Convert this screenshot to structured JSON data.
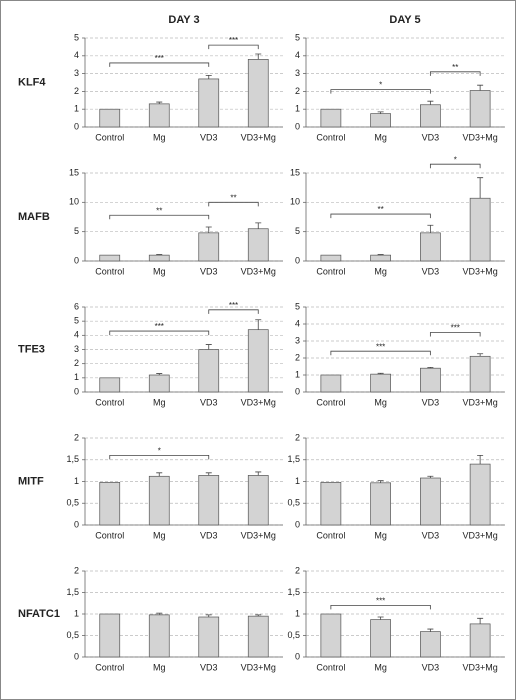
{
  "columns": [
    "DAY 3",
    "DAY 5"
  ],
  "rows": [
    "KLF4",
    "MAFB",
    "TFE3",
    "MITF",
    "NFATC1"
  ],
  "chart_data": [
    {
      "type": "bar",
      "categories": [
        "Control",
        "Mg",
        "VD3",
        "VD3+Mg"
      ],
      "values": [
        1,
        1.3,
        2.7,
        3.8
      ],
      "errors": [
        0,
        0.1,
        0.2,
        0.3
      ],
      "ylim": [
        0,
        5
      ],
      "yticks": [
        0,
        1,
        2,
        3,
        4,
        5
      ],
      "grid": true,
      "color": "#d3d3d3",
      "brackets": [
        {
          "between": [
            0,
            2
          ],
          "y": 3.6,
          "label": "***"
        },
        {
          "between": [
            2,
            3
          ],
          "y": 4.6,
          "label": "***"
        }
      ]
    },
    {
      "type": "bar",
      "categories": [
        "Control",
        "Mg",
        "VD3",
        "VD3+Mg"
      ],
      "values": [
        1,
        0.75,
        1.25,
        2.05
      ],
      "errors": [
        0,
        0.1,
        0.2,
        0.3
      ],
      "ylim": [
        0,
        5
      ],
      "yticks": [
        0,
        1,
        2,
        3,
        4,
        5
      ],
      "grid": true,
      "color": "#d3d3d3",
      "brackets": [
        {
          "between": [
            0,
            2
          ],
          "y": 2.1,
          "label": "*"
        },
        {
          "between": [
            2,
            3
          ],
          "y": 3.1,
          "label": "**"
        }
      ]
    },
    {
      "type": "bar",
      "categories": [
        "Control",
        "Mg",
        "VD3",
        "VD3+Mg"
      ],
      "values": [
        1,
        1,
        4.8,
        5.5
      ],
      "errors": [
        0,
        0.1,
        1,
        1
      ],
      "ylim": [
        0,
        15
      ],
      "yticks": [
        0,
        5,
        10,
        15
      ],
      "grid": true,
      "color": "#d3d3d3",
      "brackets": [
        {
          "between": [
            0,
            2
          ],
          "y": 7.8,
          "label": "**"
        },
        {
          "between": [
            2,
            3
          ],
          "y": 10,
          "label": "**"
        }
      ]
    },
    {
      "type": "bar",
      "categories": [
        "Control",
        "Mg",
        "VD3",
        "VD3+Mg"
      ],
      "values": [
        1,
        1,
        4.8,
        10.7
      ],
      "errors": [
        0,
        0.1,
        1.3,
        3.5
      ],
      "ylim": [
        0,
        15
      ],
      "yticks": [
        0,
        5,
        10,
        15
      ],
      "grid": true,
      "color": "#d3d3d3",
      "brackets": [
        {
          "between": [
            0,
            2
          ],
          "y": 8,
          "label": "**"
        },
        {
          "between": [
            2,
            3
          ],
          "y": 16.5,
          "label": "*"
        }
      ]
    },
    {
      "type": "bar",
      "categories": [
        "Control",
        "Mg",
        "VD3",
        "VD3+Mg"
      ],
      "values": [
        1,
        1.2,
        3,
        4.4
      ],
      "errors": [
        0,
        0.1,
        0.35,
        0.7
      ],
      "ylim": [
        0,
        6
      ],
      "yticks": [
        0,
        1,
        2,
        3,
        4,
        5,
        6
      ],
      "grid": true,
      "color": "#d3d3d3",
      "brackets": [
        {
          "between": [
            0,
            2
          ],
          "y": 4.3,
          "label": "***"
        },
        {
          "between": [
            2,
            3
          ],
          "y": 5.8,
          "label": "***"
        }
      ]
    },
    {
      "type": "bar",
      "categories": [
        "Control",
        "Mg",
        "VD3",
        "VD3+Mg"
      ],
      "values": [
        1,
        1.05,
        1.4,
        2.1
      ],
      "errors": [
        0,
        0.05,
        0.05,
        0.15
      ],
      "ylim": [
        0,
        5
      ],
      "yticks": [
        0,
        1,
        2,
        3,
        4,
        5
      ],
      "grid": true,
      "color": "#d3d3d3",
      "brackets": [
        {
          "between": [
            0,
            2
          ],
          "y": 2.4,
          "label": "***"
        },
        {
          "between": [
            2,
            3
          ],
          "y": 3.5,
          "label": "***"
        }
      ]
    },
    {
      "type": "bar",
      "categories": [
        "Control",
        "Mg",
        "VD3",
        "VD3+Mg"
      ],
      "values": [
        0.98,
        1.12,
        1.14,
        1.14
      ],
      "errors": [
        0,
        0.08,
        0.06,
        0.08
      ],
      "ylim": [
        0,
        2
      ],
      "yticks": [
        0,
        {
          "value": 0.5,
          "label": "0,5"
        },
        1,
        {
          "value": 1.5,
          "label": "1,5"
        },
        2
      ],
      "grid": true,
      "color": "#d3d3d3",
      "brackets": [
        {
          "between": [
            0,
            2
          ],
          "y": 1.6,
          "label": "*"
        }
      ]
    },
    {
      "type": "bar",
      "categories": [
        "Control",
        "Mg",
        "VD3",
        "VD3+Mg"
      ],
      "values": [
        0.98,
        0.97,
        1.08,
        1.4
      ],
      "errors": [
        0,
        0.05,
        0.04,
        0.2
      ],
      "ylim": [
        0,
        2
      ],
      "yticks": [
        0,
        {
          "value": 0.5,
          "label": "0,5"
        },
        1,
        {
          "value": 1.5,
          "label": "1,5"
        },
        2
      ],
      "grid": true,
      "color": "#d3d3d3",
      "brackets": []
    },
    {
      "type": "bar",
      "categories": [
        "Control",
        "Mg",
        "VD3",
        "VD3+Mg"
      ],
      "values": [
        1,
        0.98,
        0.93,
        0.95
      ],
      "errors": [
        0,
        0.04,
        0.05,
        0.03
      ],
      "ylim": [
        0,
        2
      ],
      "yticks": [
        0,
        {
          "value": 0.5,
          "label": "0,5"
        },
        1,
        {
          "value": 1.5,
          "label": "1,5"
        },
        2
      ],
      "grid": true,
      "color": "#d3d3d3",
      "brackets": []
    },
    {
      "type": "bar",
      "categories": [
        "Control",
        "Mg",
        "VD3",
        "VD3+Mg"
      ],
      "values": [
        1,
        0.87,
        0.59,
        0.77
      ],
      "errors": [
        0,
        0.06,
        0.06,
        0.13
      ],
      "ylim": [
        0,
        2
      ],
      "yticks": [
        0,
        {
          "value": 0.5,
          "label": "0,5"
        },
        1,
        {
          "value": 1.5,
          "label": "1,5"
        },
        2
      ],
      "grid": true,
      "color": "#d3d3d3",
      "brackets": [
        {
          "between": [
            0,
            2
          ],
          "y": 1.2,
          "label": "***"
        }
      ]
    }
  ]
}
